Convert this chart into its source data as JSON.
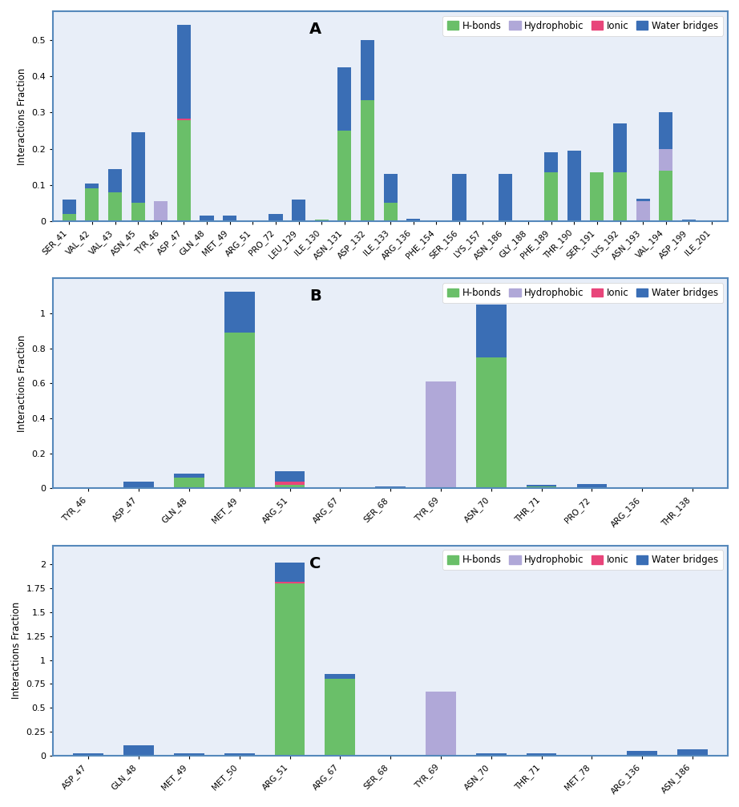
{
  "A": {
    "categories": [
      "SER_41",
      "VAL_42",
      "VAL_43",
      "ASN_45",
      "TYR_46",
      "ASP_47",
      "GLN_48",
      "MET_49",
      "ARG_51",
      "PRO_72",
      "LEU_129",
      "ILE_130",
      "ASN_131",
      "ASP_132",
      "ILE_133",
      "ARG_136",
      "PHE_154",
      "SER_156",
      "LYS_157",
      "ASN_186",
      "GLY_188",
      "PHE_189",
      "THR_190",
      "SER_191",
      "LYS_192",
      "ASN_193",
      "VAL_194",
      "ASP_199",
      "ILE_201"
    ],
    "hbonds": [
      0.02,
      0.09,
      0.08,
      0.05,
      0.0,
      0.28,
      0.0,
      0.0,
      0.0,
      0.0,
      0.0,
      0.005,
      0.25,
      0.335,
      0.05,
      0.0,
      0.0,
      0.0,
      0.0,
      0.0,
      0.0,
      0.135,
      0.0,
      0.135,
      0.135,
      0.0,
      0.14,
      0.0,
      0.0
    ],
    "hydrophobic": [
      0.0,
      0.0,
      0.0,
      0.0,
      0.055,
      0.0,
      0.0,
      0.0,
      0.0,
      0.0,
      0.0,
      0.0,
      0.0,
      0.0,
      0.0,
      0.0,
      0.0,
      0.0,
      0.0,
      0.0,
      0.0,
      0.0,
      0.0,
      0.0,
      0.0,
      0.055,
      0.06,
      0.0,
      0.0
    ],
    "ionic": [
      0.0,
      0.0,
      0.0,
      0.0,
      0.0,
      0.003,
      0.0,
      0.0,
      0.0,
      0.0,
      0.0,
      0.0,
      0.0,
      0.0,
      0.0,
      0.0,
      0.0,
      0.0,
      0.0,
      0.0,
      0.0,
      0.0,
      0.0,
      0.0,
      0.0,
      0.0,
      0.0,
      0.0,
      0.0
    ],
    "waterbridges": [
      0.04,
      0.015,
      0.065,
      0.195,
      0.0,
      0.26,
      0.015,
      0.015,
      0.003,
      0.02,
      0.06,
      0.0,
      0.175,
      0.165,
      0.08,
      0.006,
      0.001,
      0.13,
      0.003,
      0.13,
      0.0,
      0.055,
      0.195,
      0.0,
      0.135,
      0.007,
      0.1,
      0.005,
      0.003
    ],
    "ylim": [
      0,
      0.58
    ],
    "yticks": [
      0.0,
      0.1,
      0.2,
      0.3,
      0.4,
      0.5
    ],
    "label": "A"
  },
  "B": {
    "categories": [
      "TYR_46",
      "ASP_47",
      "GLN_48",
      "MET_49",
      "ARG_51",
      "ARG_67",
      "SER_68",
      "TYR_69",
      "ASN_70",
      "THR_71",
      "PRO_72",
      "ARG_136",
      "THR_138"
    ],
    "hbonds": [
      0.0,
      0.0,
      0.06,
      0.89,
      0.02,
      0.0,
      0.005,
      0.0,
      0.75,
      0.01,
      0.0,
      0.0,
      0.0
    ],
    "hydrophobic": [
      0.0,
      0.0,
      0.0,
      0.0,
      0.0,
      0.0,
      0.0,
      0.61,
      0.0,
      0.0,
      0.0,
      0.0,
      0.0
    ],
    "ionic": [
      0.0,
      0.0,
      0.0,
      0.0,
      0.02,
      0.0,
      0.0,
      0.0,
      0.0,
      0.0,
      0.0,
      0.0,
      0.0
    ],
    "waterbridges": [
      0.003,
      0.04,
      0.025,
      0.235,
      0.06,
      0.007,
      0.005,
      0.0,
      0.3,
      0.01,
      0.025,
      0.003,
      0.003
    ],
    "ylim": [
      0,
      1.2
    ],
    "yticks": [
      0.0,
      0.2,
      0.4,
      0.6,
      0.8,
      1.0
    ],
    "label": "B"
  },
  "C": {
    "categories": [
      "ASP_47",
      "GLN_48",
      "MET_49",
      "MET_50",
      "ARG_51",
      "ARG_67",
      "SER_68",
      "TYR_69",
      "ASN_70",
      "THR_71",
      "MET_78",
      "ARG_136",
      "ASN_186"
    ],
    "hbonds": [
      0.01,
      0.0,
      0.01,
      0.01,
      1.8,
      0.8,
      0.0,
      0.0,
      0.0,
      0.0,
      0.0,
      0.0,
      0.0
    ],
    "hydrophobic": [
      0.0,
      0.0,
      0.0,
      0.0,
      0.0,
      0.0,
      0.0,
      0.67,
      0.0,
      0.0,
      0.0,
      0.0,
      0.0
    ],
    "ionic": [
      0.0,
      0.0,
      0.0,
      0.0,
      0.02,
      0.0,
      0.0,
      0.0,
      0.0,
      0.0,
      0.0,
      0.0,
      0.0
    ],
    "waterbridges": [
      0.01,
      0.11,
      0.01,
      0.01,
      0.2,
      0.05,
      0.005,
      0.0,
      0.025,
      0.025,
      0.0,
      0.05,
      0.065
    ],
    "ylim": [
      0,
      2.2
    ],
    "yticks": [
      0.0,
      0.25,
      0.5,
      0.75,
      1.0,
      1.25,
      1.5,
      1.75,
      2.0
    ],
    "label": "C"
  },
  "colors": {
    "hbonds": "#6abf69",
    "hydrophobic": "#b0a8d8",
    "ionic": "#e8457a",
    "waterbridges": "#3a6eb5"
  },
  "ylabel": "Interactions Fraction",
  "bg_color": "#e8eef8"
}
